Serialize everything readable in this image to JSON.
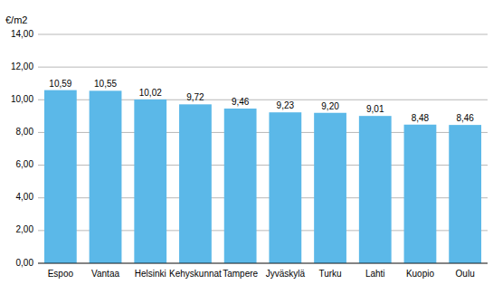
{
  "chart_data": {
    "type": "bar",
    "ylabel": "€/m2",
    "categories": [
      "Espoo",
      "Vantaa",
      "Helsinki",
      "Kehyskunnat",
      "Tampere",
      "Jyväskylä",
      "Turku",
      "Lahti",
      "Kuopio",
      "Oulu"
    ],
    "values": [
      10.59,
      10.55,
      10.02,
      9.72,
      9.46,
      9.23,
      9.2,
      9.01,
      8.48,
      8.46
    ],
    "value_labels": [
      "10,59",
      "10,55",
      "10,02",
      "9,72",
      "9,46",
      "9,23",
      "9,20",
      "9,01",
      "8,48",
      "8,46"
    ],
    "color": "#5BB8E8",
    "ylim": [
      0,
      14.0
    ],
    "yticks": [
      {
        "value": 0.0,
        "label": "0,00"
      },
      {
        "value": 2.0,
        "label": "2,00"
      },
      {
        "value": 4.0,
        "label": "4,00"
      },
      {
        "value": 6.0,
        "label": "6,00"
      },
      {
        "value": 8.0,
        "label": "8,00"
      },
      {
        "value": 10.0,
        "label": "10,00"
      },
      {
        "value": 12.0,
        "label": "12,00"
      },
      {
        "value": 14.0,
        "label": "14,00"
      }
    ],
    "grid": true,
    "data_labels": true
  }
}
